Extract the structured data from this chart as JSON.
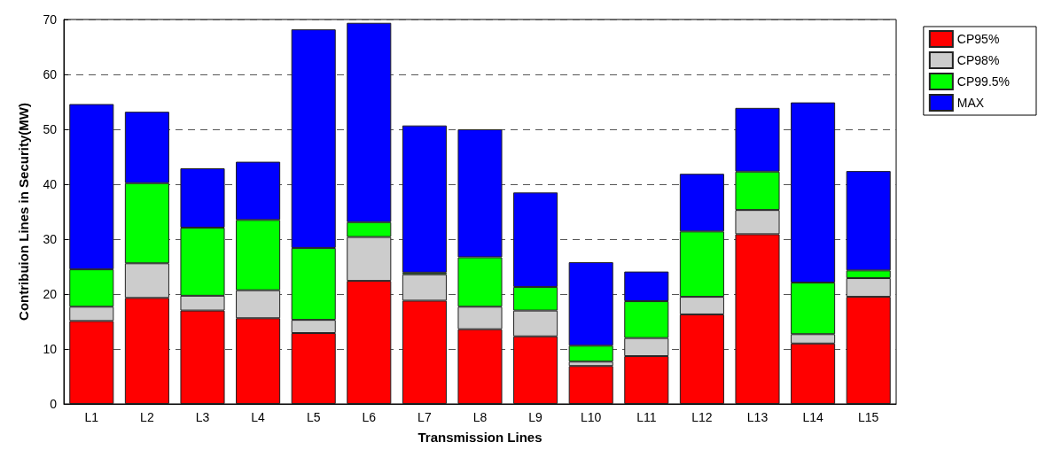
{
  "chart_data": {
    "type": "bar",
    "stacked": true,
    "xlabel": "Transmission Lines",
    "ylabel": "Contribuion Lines in Security(MW)",
    "categories": [
      "L1",
      "L2",
      "L3",
      "L4",
      "L5",
      "L6",
      "L7",
      "L8",
      "L9",
      "L10",
      "L11",
      "L12",
      "L13",
      "L14",
      "L15"
    ],
    "series": [
      {
        "name": "CP95%",
        "color": "#ff0000",
        "values": [
          15.1,
          19.3,
          17.0,
          15.6,
          12.9,
          22.4,
          18.8,
          13.6,
          12.3,
          6.9,
          8.7,
          16.3,
          30.9,
          11.0,
          19.5
        ]
      },
      {
        "name": "CP98%",
        "color": "#cccccc",
        "values": [
          2.6,
          6.3,
          2.7,
          5.1,
          2.4,
          8.0,
          4.8,
          4.1,
          4.7,
          0.8,
          3.3,
          3.2,
          4.4,
          1.7,
          3.4
        ]
      },
      {
        "name": "CP99.5%",
        "color": "#00ff00",
        "values": [
          6.8,
          14.6,
          12.4,
          12.8,
          13.1,
          2.7,
          0.3,
          9.0,
          4.3,
          2.9,
          6.7,
          11.9,
          7.0,
          9.4,
          1.4
        ]
      },
      {
        "name": "MAX",
        "color": "#0000ff",
        "values": [
          30.1,
          13.0,
          10.8,
          10.6,
          39.8,
          36.3,
          26.8,
          23.3,
          17.2,
          15.2,
          5.4,
          10.5,
          11.6,
          32.8,
          18.1
        ]
      }
    ],
    "ylim": [
      0,
      70
    ],
    "yticks": [
      0,
      10,
      20,
      30,
      40,
      50,
      60,
      70
    ],
    "grid": "y",
    "legend": "top right"
  }
}
